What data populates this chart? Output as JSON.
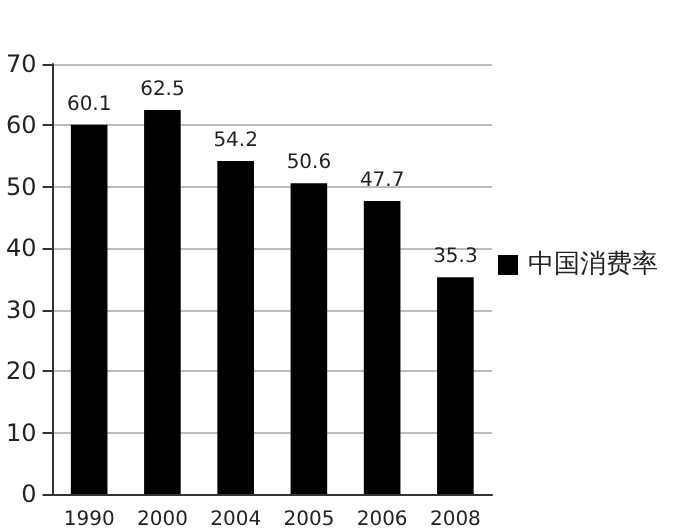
{
  "chart_data": {
    "type": "bar",
    "categories": [
      "1990",
      "2000",
      "2004",
      "2005",
      "2006",
      "2008"
    ],
    "series": [
      {
        "name": "中国消费率",
        "color": "#000000",
        "values": [
          60.1,
          62.5,
          54.2,
          50.6,
          47.7,
          35.3
        ]
      }
    ],
    "ylim": [
      0,
      70
    ],
    "yticks": [
      0,
      10,
      20,
      30,
      40,
      50,
      60,
      70
    ],
    "grid": "y",
    "legend": "right",
    "data_labels": true
  }
}
